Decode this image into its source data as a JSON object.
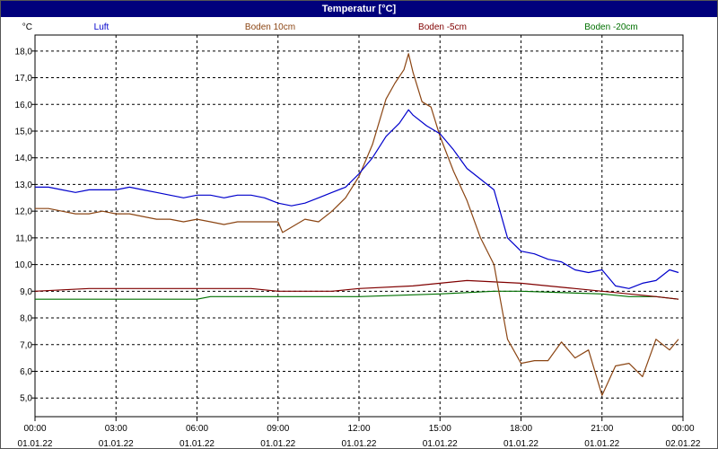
{
  "window": {
    "title": "Temperatur [°C]"
  },
  "colors": {
    "title_bar": "#00007c",
    "Luft": "#0000cc",
    "Boden 10cm": "#8b4513",
    "Boden -5cm": "#800000",
    "Boden -20cm": "#007000",
    "grid": "#000000"
  },
  "chart_data": {
    "type": "line",
    "title": "Temperatur [°C]",
    "unit_label": "°C",
    "ylabel": "",
    "xlabel": "",
    "grid": true,
    "legend_placement": "top",
    "ylim": [
      4.3,
      18.6
    ],
    "xlim": [
      "01.01.22 00:00",
      "02.01.22 00:00"
    ],
    "y_ticks": [
      "5,0",
      "6,0",
      "7,0",
      "8,0",
      "9,0",
      "10,0",
      "11,0",
      "12,0",
      "13,0",
      "14,0",
      "15,0",
      "16,0",
      "17,0",
      "18,0"
    ],
    "y_tick_values": [
      5,
      6,
      7,
      8,
      9,
      10,
      11,
      12,
      13,
      14,
      15,
      16,
      17,
      18
    ],
    "x_ticks": [
      {
        "time": "00:00",
        "date": "01.01.22"
      },
      {
        "time": "03:00",
        "date": "01.01.22"
      },
      {
        "time": "06:00",
        "date": "01.01.22"
      },
      {
        "time": "09:00",
        "date": "01.01.22"
      },
      {
        "time": "12:00",
        "date": "01.01.22"
      },
      {
        "time": "15:00",
        "date": "01.01.22"
      },
      {
        "time": "18:00",
        "date": "01.01.22"
      },
      {
        "time": "21:00",
        "date": "01.01.22"
      },
      {
        "time": "00:00",
        "date": "02.01.22"
      }
    ],
    "series": [
      {
        "name": "Luft",
        "x": [
          "00:00",
          "00:30",
          "01:00",
          "01:30",
          "02:00",
          "02:30",
          "03:00",
          "03:30",
          "04:00",
          "04:30",
          "05:00",
          "05:30",
          "06:00",
          "06:30",
          "07:00",
          "07:30",
          "08:00",
          "08:30",
          "09:00",
          "09:30",
          "10:00",
          "10:30",
          "11:00",
          "11:30",
          "12:00",
          "12:30",
          "13:00",
          "13:30",
          "13:50",
          "14:00",
          "14:30",
          "15:00",
          "15:30",
          "16:00",
          "16:30",
          "17:00",
          "17:30",
          "18:00",
          "18:30",
          "19:00",
          "19:30",
          "20:00",
          "20:30",
          "21:00",
          "21:30",
          "22:00",
          "22:30",
          "23:00",
          "23:30",
          "23:50"
        ],
        "y": [
          12.9,
          12.9,
          12.8,
          12.7,
          12.8,
          12.8,
          12.8,
          12.9,
          12.8,
          12.7,
          12.6,
          12.5,
          12.6,
          12.6,
          12.5,
          12.6,
          12.6,
          12.5,
          12.3,
          12.2,
          12.3,
          12.5,
          12.7,
          12.9,
          13.4,
          14.0,
          14.8,
          15.3,
          15.8,
          15.6,
          15.2,
          14.9,
          14.3,
          13.6,
          13.2,
          12.8,
          11.0,
          10.5,
          10.4,
          10.2,
          10.1,
          9.8,
          9.7,
          9.8,
          9.2,
          9.1,
          9.3,
          9.4,
          9.8,
          9.7
        ]
      },
      {
        "name": "Boden 10cm",
        "x": [
          "00:00",
          "00:30",
          "01:00",
          "01:30",
          "02:00",
          "02:30",
          "03:00",
          "03:30",
          "04:00",
          "04:30",
          "05:00",
          "05:30",
          "06:00",
          "06:30",
          "07:00",
          "07:30",
          "08:00",
          "08:30",
          "09:00",
          "09:10",
          "09:30",
          "10:00",
          "10:30",
          "11:00",
          "11:30",
          "12:00",
          "12:30",
          "13:00",
          "13:20",
          "13:40",
          "13:50",
          "14:00",
          "14:20",
          "14:40",
          "15:00",
          "15:30",
          "16:00",
          "16:30",
          "17:00",
          "17:30",
          "18:00",
          "18:30",
          "19:00",
          "19:30",
          "20:00",
          "20:30",
          "21:00",
          "21:30",
          "22:00",
          "22:30",
          "23:00",
          "23:30",
          "23:50"
        ],
        "y": [
          12.1,
          12.1,
          12.0,
          11.9,
          11.9,
          12.0,
          11.9,
          11.9,
          11.8,
          11.7,
          11.7,
          11.6,
          11.7,
          11.6,
          11.5,
          11.6,
          11.6,
          11.6,
          11.6,
          11.2,
          11.4,
          11.7,
          11.6,
          12.0,
          12.5,
          13.3,
          14.5,
          16.2,
          16.8,
          17.3,
          17.9,
          17.2,
          16.1,
          15.9,
          14.8,
          13.5,
          12.4,
          11.0,
          10.0,
          7.2,
          6.3,
          6.4,
          6.4,
          7.1,
          6.5,
          6.8,
          5.1,
          6.2,
          6.3,
          5.8,
          7.2,
          6.8,
          7.2
        ]
      },
      {
        "name": "Boden -5cm",
        "x": [
          "00:00",
          "02:00",
          "04:00",
          "06:00",
          "08:00",
          "09:00",
          "11:00",
          "12:00",
          "14:00",
          "15:00",
          "16:00",
          "18:00",
          "19:00",
          "20:00",
          "21:00",
          "22:00",
          "23:00",
          "23:50"
        ],
        "y": [
          9.0,
          9.1,
          9.1,
          9.1,
          9.1,
          9.0,
          9.0,
          9.1,
          9.2,
          9.3,
          9.4,
          9.3,
          9.2,
          9.1,
          9.0,
          8.9,
          8.8,
          8.7
        ]
      },
      {
        "name": "Boden -20cm",
        "x": [
          "00:00",
          "03:00",
          "06:00",
          "06:30",
          "09:00",
          "12:00",
          "15:00",
          "17:00",
          "18:00",
          "21:00",
          "22:00",
          "23:00",
          "23:50"
        ],
        "y": [
          8.7,
          8.7,
          8.7,
          8.8,
          8.8,
          8.8,
          8.9,
          9.0,
          9.0,
          8.9,
          8.8,
          8.8,
          8.7
        ]
      }
    ]
  }
}
